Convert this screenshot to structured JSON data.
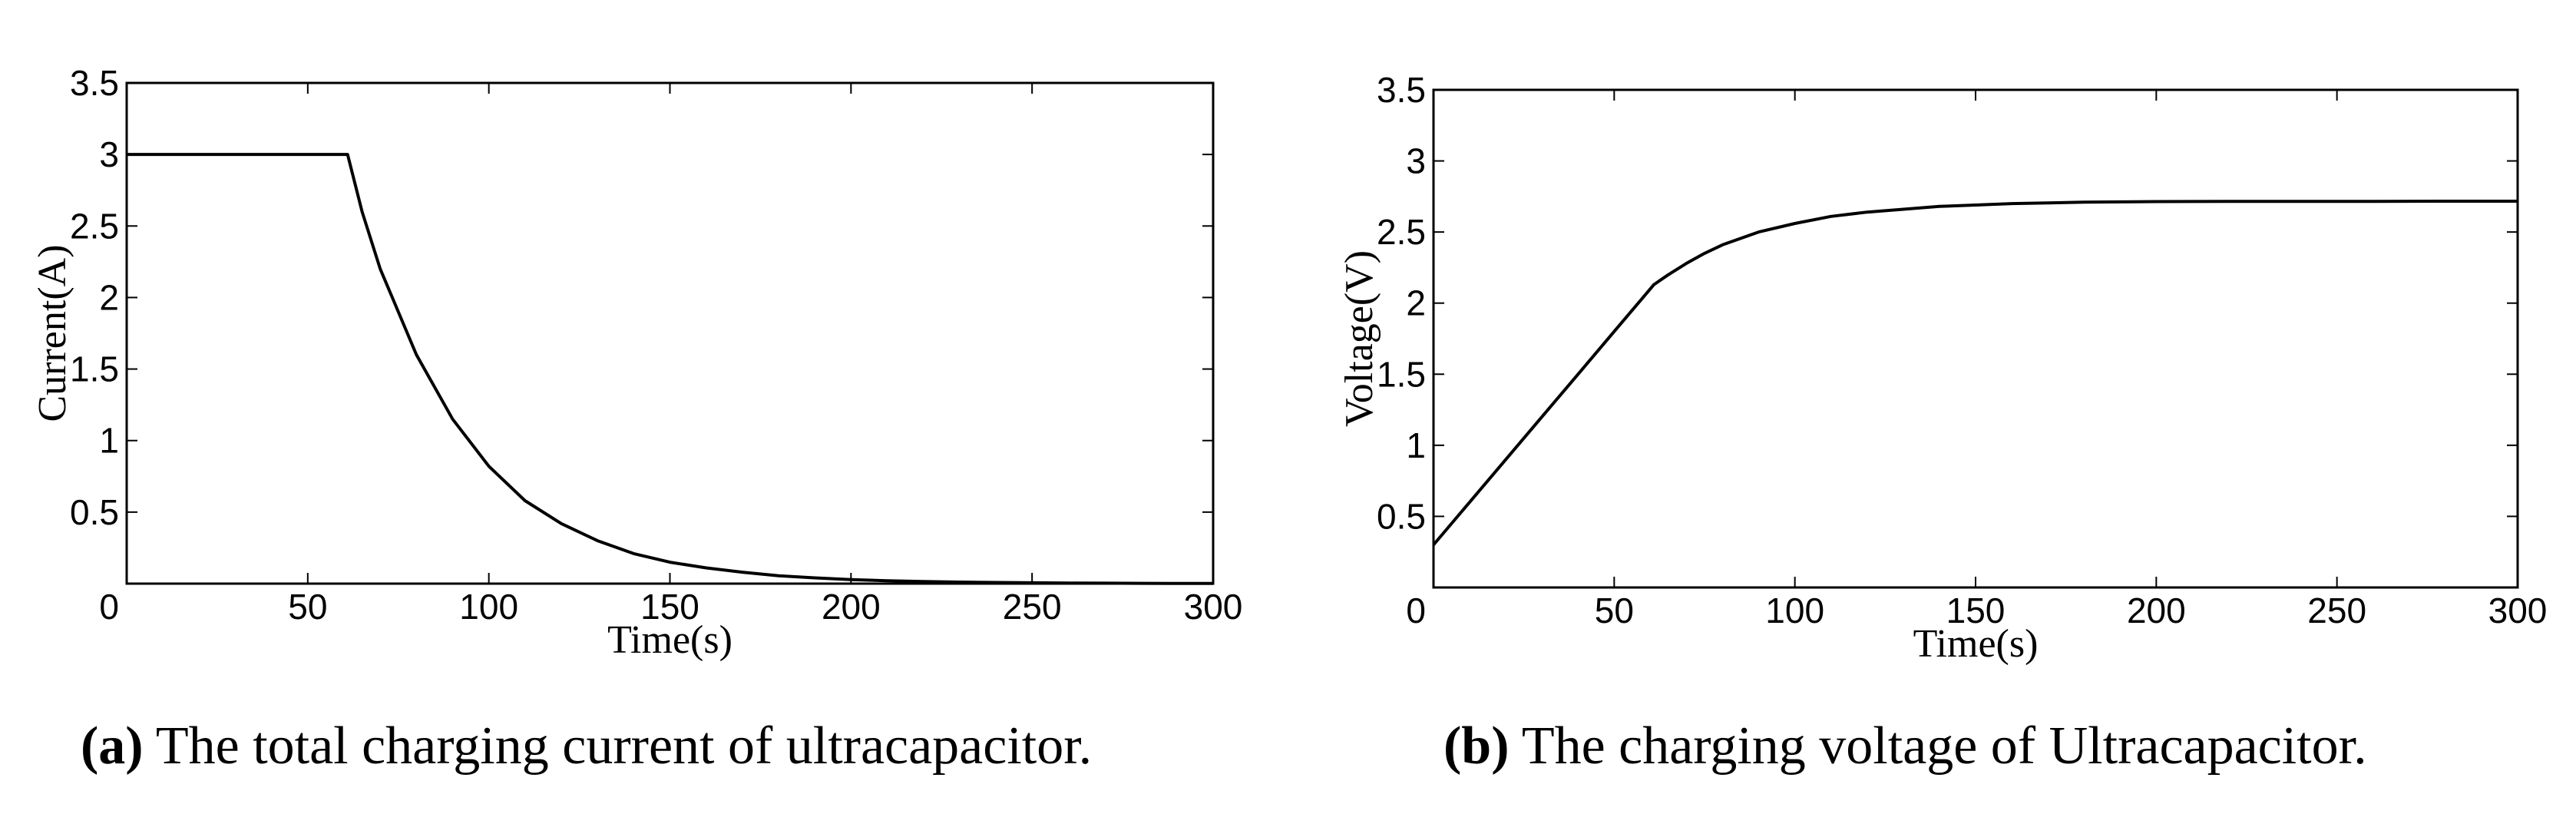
{
  "chart_data": [
    {
      "type": "line",
      "xlabel": "Time(s)",
      "ylabel": "Current(A)",
      "xlim": [
        0,
        300
      ],
      "ylim": [
        0,
        3.5
      ],
      "xticks": [
        "0",
        "50",
        "100",
        "150",
        "200",
        "250",
        "300"
      ],
      "yticks": [
        "0.5",
        "1",
        "1.5",
        "2",
        "2.5",
        "3",
        "3.5"
      ],
      "grid": false,
      "caption": {
        "tag": "(a)",
        "text": "The total charging current of ultracapacitor."
      },
      "series": [
        {
          "x": [
            0,
            10,
            20,
            30,
            40,
            50,
            61,
            65,
            70,
            75,
            80,
            90,
            100,
            110,
            120,
            130,
            140,
            150,
            160,
            170,
            180,
            190,
            200,
            210,
            220,
            230,
            240,
            250,
            260,
            270,
            280,
            290,
            300
          ],
          "values": [
            3.0,
            3.0,
            3.0,
            3.0,
            3.0,
            3.0,
            3.0,
            2.6,
            2.2,
            1.9,
            1.6,
            1.15,
            0.82,
            0.58,
            0.42,
            0.3,
            0.21,
            0.15,
            0.11,
            0.08,
            0.055,
            0.04,
            0.028,
            0.02,
            0.015,
            0.011,
            0.008,
            0.006,
            0.004,
            0.003,
            0.002,
            0.001,
            0.001
          ]
        }
      ]
    },
    {
      "type": "line",
      "xlabel": "Time(s)",
      "ylabel": "Voltage(V)",
      "xlim": [
        0,
        300
      ],
      "ylim": [
        0,
        3.5
      ],
      "xticks": [
        "0",
        "50",
        "100",
        "150",
        "200",
        "250",
        "300"
      ],
      "yticks": [
        "0.5",
        "1",
        "1.5",
        "2",
        "2.5",
        "3",
        "3.5"
      ],
      "grid": false,
      "caption": {
        "tag": "(b)",
        "text": "The charging voltage of Ultracapacitor."
      },
      "series": [
        {
          "x": [
            0,
            10,
            20,
            30,
            40,
            50,
            61,
            65,
            70,
            75,
            80,
            90,
            100,
            110,
            120,
            130,
            140,
            150,
            160,
            170,
            180,
            190,
            200,
            220,
            240,
            260,
            280,
            300
          ],
          "values": [
            0.3,
            0.6,
            0.9,
            1.2,
            1.5,
            1.8,
            2.13,
            2.2,
            2.28,
            2.35,
            2.41,
            2.5,
            2.56,
            2.61,
            2.64,
            2.66,
            2.68,
            2.69,
            2.7,
            2.705,
            2.71,
            2.712,
            2.714,
            2.715,
            2.716,
            2.716,
            2.717,
            2.717
          ]
        }
      ]
    }
  ]
}
